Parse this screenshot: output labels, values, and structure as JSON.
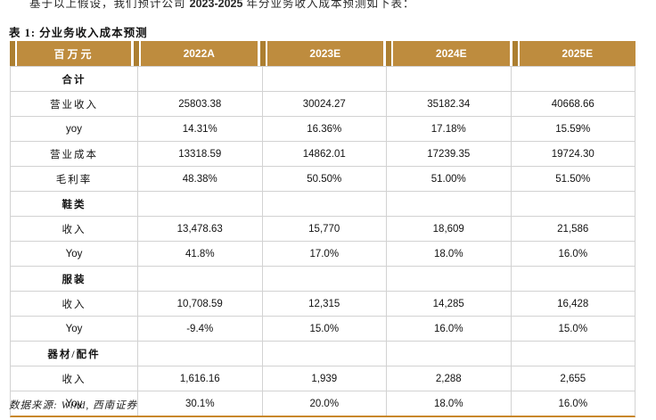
{
  "page": {
    "top_line": {
      "prefix": "基于以上假设，我们预计公司 ",
      "bold": "2023-2025",
      "suffix": " 年分业务收入成本预测如下表："
    },
    "title": "表 1: 分业务收入成本预测",
    "footnote": "数据来源: Wind, 西南证券"
  },
  "colors": {
    "header_bg": "#BE8C3E",
    "header_accent": "#AC7F31",
    "grid_line": "#D2D2D2",
    "bottom_rule": "#C8872B"
  },
  "table": {
    "unit_header": "百万元",
    "columns": [
      "2022A",
      "2023E",
      "2024E",
      "2025E"
    ],
    "rows": [
      {
        "label": "合计",
        "section": true,
        "values": [
          "",
          "",
          "",
          ""
        ]
      },
      {
        "label": "营业收入",
        "section": false,
        "values": [
          "25803.38",
          "30024.27",
          "35182.34",
          "40668.66"
        ]
      },
      {
        "label": "yoy",
        "section": false,
        "values": [
          "14.31%",
          "16.36%",
          "17.18%",
          "15.59%"
        ]
      },
      {
        "label": "营业成本",
        "section": false,
        "values": [
          "13318.59",
          "14862.01",
          "17239.35",
          "19724.30"
        ]
      },
      {
        "label": "毛利率",
        "section": false,
        "values": [
          "48.38%",
          "50.50%",
          "51.00%",
          "51.50%"
        ]
      },
      {
        "label": "鞋类",
        "section": true,
        "values": [
          "",
          "",
          "",
          ""
        ]
      },
      {
        "label": "收入",
        "section": false,
        "values": [
          "13,478.63",
          "15,770",
          "18,609",
          "21,586"
        ]
      },
      {
        "label": "Yoy",
        "section": false,
        "values": [
          "41.8%",
          "17.0%",
          "18.0%",
          "16.0%"
        ]
      },
      {
        "label": "服装",
        "section": true,
        "values": [
          "",
          "",
          "",
          ""
        ]
      },
      {
        "label": "收入",
        "section": false,
        "values": [
          "10,708.59",
          "12,315",
          "14,285",
          "16,428"
        ]
      },
      {
        "label": "Yoy",
        "section": false,
        "values": [
          "-9.4%",
          "15.0%",
          "16.0%",
          "15.0%"
        ]
      },
      {
        "label": "器材/配件",
        "section": true,
        "values": [
          "",
          "",
          "",
          ""
        ]
      },
      {
        "label": "收入",
        "section": false,
        "values": [
          "1,616.16",
          "1,939",
          "2,288",
          "2,655"
        ]
      },
      {
        "label": "Yoy",
        "section": false,
        "values": [
          "30.1%",
          "20.0%",
          "18.0%",
          "16.0%"
        ]
      }
    ]
  }
}
